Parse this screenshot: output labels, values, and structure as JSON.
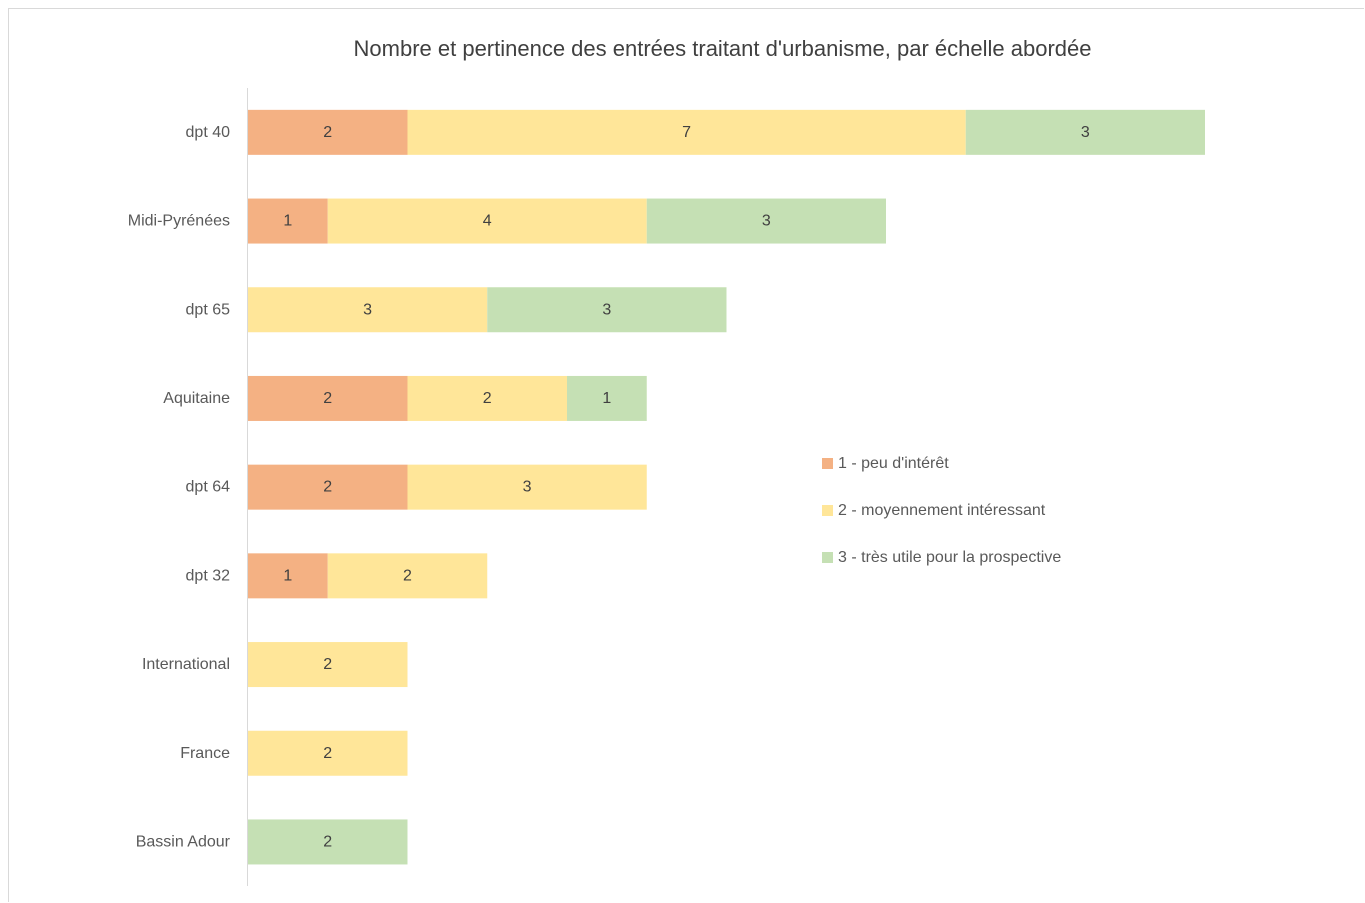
{
  "chart_data": {
    "type": "bar",
    "orientation": "horizontal",
    "stacked": true,
    "title": "Nombre et pertinence des entrées traitant d'urbanisme, par échelle abordée",
    "categories": [
      "dpt 40",
      "Midi-Pyrénées",
      "dpt 65",
      "Aquitaine",
      "dpt 64",
      "dpt 32",
      "International",
      "France",
      "Bassin Adour"
    ],
    "series": [
      {
        "name": "1 - peu d'intérêt",
        "color": "#f4b183",
        "values": [
          2,
          1,
          0,
          2,
          2,
          1,
          0,
          0,
          0
        ]
      },
      {
        "name": "2 - moyennement intéressant",
        "color": "#ffe699",
        "values": [
          7,
          4,
          3,
          2,
          3,
          2,
          2,
          2,
          0
        ]
      },
      {
        "name": "3 - très utile pour la prospective",
        "color": "#c5e0b4",
        "values": [
          3,
          3,
          3,
          1,
          0,
          0,
          0,
          0,
          2
        ]
      }
    ],
    "data_labels": true,
    "legend_position": "right",
    "grid": false,
    "xlim": [
      0,
      12
    ]
  }
}
